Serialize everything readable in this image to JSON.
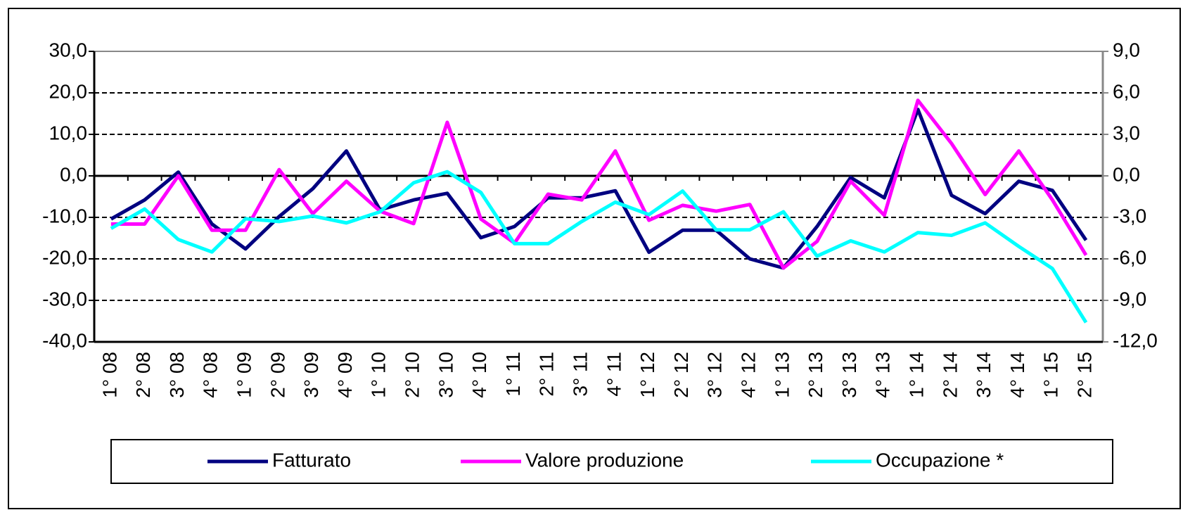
{
  "chart_data": {
    "type": "line",
    "categories": [
      "1° 08",
      "2° 08",
      "3° 08",
      "4° 08",
      "1° 09",
      "2° 09",
      "3° 09",
      "4° 09",
      "1° 10",
      "2° 10",
      "3° 10",
      "4° 10",
      "1° 11",
      "2° 11",
      "3° 11",
      "4° 11",
      "1° 12",
      "2° 12",
      "3° 12",
      "4° 12",
      "1° 13",
      "2° 13",
      "3° 13",
      "4° 13",
      "1° 14",
      "2° 14",
      "3° 14",
      "4° 14",
      "1° 15",
      "2° 15"
    ],
    "series": [
      {
        "name": "Fatturato",
        "color": "#000080",
        "values": [
          -10.4,
          -5.8,
          0.9,
          -11.6,
          -17.6,
          -9.8,
          -3.1,
          6.0,
          -8.2,
          -5.8,
          -4.2,
          -14.9,
          -12.2,
          -5.3,
          -5.3,
          -3.6,
          -18.4,
          -13.1,
          -13.1,
          -20.0,
          -22.2,
          -12.2,
          -0.4,
          -5.3,
          16.0,
          -4.7,
          -9.1,
          -1.3,
          -3.5,
          -15.5
        ]
      },
      {
        "name": "Valore produzione",
        "color": "#ff00ff",
        "values": [
          -11.6,
          -11.6,
          0.0,
          -13.1,
          -13.1,
          1.5,
          -9.1,
          -1.3,
          -8.5,
          -11.5,
          12.9,
          -10.4,
          -16.2,
          -4.4,
          -5.8,
          6.0,
          -10.7,
          -7.1,
          -8.5,
          -6.9,
          -22.2,
          -15.8,
          -1.3,
          -9.5,
          18.2,
          7.8,
          -4.5,
          6.0,
          -5.8,
          -19.1
        ]
      },
      {
        "name": "Occupazione *",
        "color": "#00ffff",
        "axis": "y2",
        "values": [
          -3.8,
          -2.4,
          -4.6,
          -5.5,
          -3.1,
          -3.3,
          -2.9,
          -3.4,
          -2.6,
          -0.5,
          0.3,
          -1.2,
          -4.9,
          -4.9,
          -3.3,
          -1.9,
          -2.8,
          -1.1,
          -3.9,
          -3.9,
          -2.6,
          -5.8,
          -4.7,
          -5.5,
          -4.1,
          -4.3,
          -3.4,
          -5.1,
          -6.7,
          -10.6
        ]
      }
    ],
    "ylim": [
      -40,
      30
    ],
    "yticks": [
      {
        "value": -40,
        "label": "-40,0"
      },
      {
        "value": -30,
        "label": "-30,0"
      },
      {
        "value": -20,
        "label": "-20,0"
      },
      {
        "value": -10,
        "label": "-10,0"
      },
      {
        "value": 0,
        "label": "0,0"
      },
      {
        "value": 10,
        "label": "10,0"
      },
      {
        "value": 20,
        "label": "20,0"
      },
      {
        "value": 30,
        "label": "30,0"
      }
    ],
    "y2lim": [
      -12,
      9
    ],
    "y2ticks": [
      {
        "value": -12,
        "label": "-12,0"
      },
      {
        "value": -9,
        "label": "-9,0"
      },
      {
        "value": -6,
        "label": "-6,0"
      },
      {
        "value": -3,
        "label": "-3,0"
      },
      {
        "value": 0,
        "label": "0,0"
      },
      {
        "value": 3,
        "label": "3,0"
      },
      {
        "value": 6,
        "label": "6,0"
      },
      {
        "value": 9,
        "label": "9,0"
      }
    ],
    "grid": true,
    "legend": "bottom"
  }
}
